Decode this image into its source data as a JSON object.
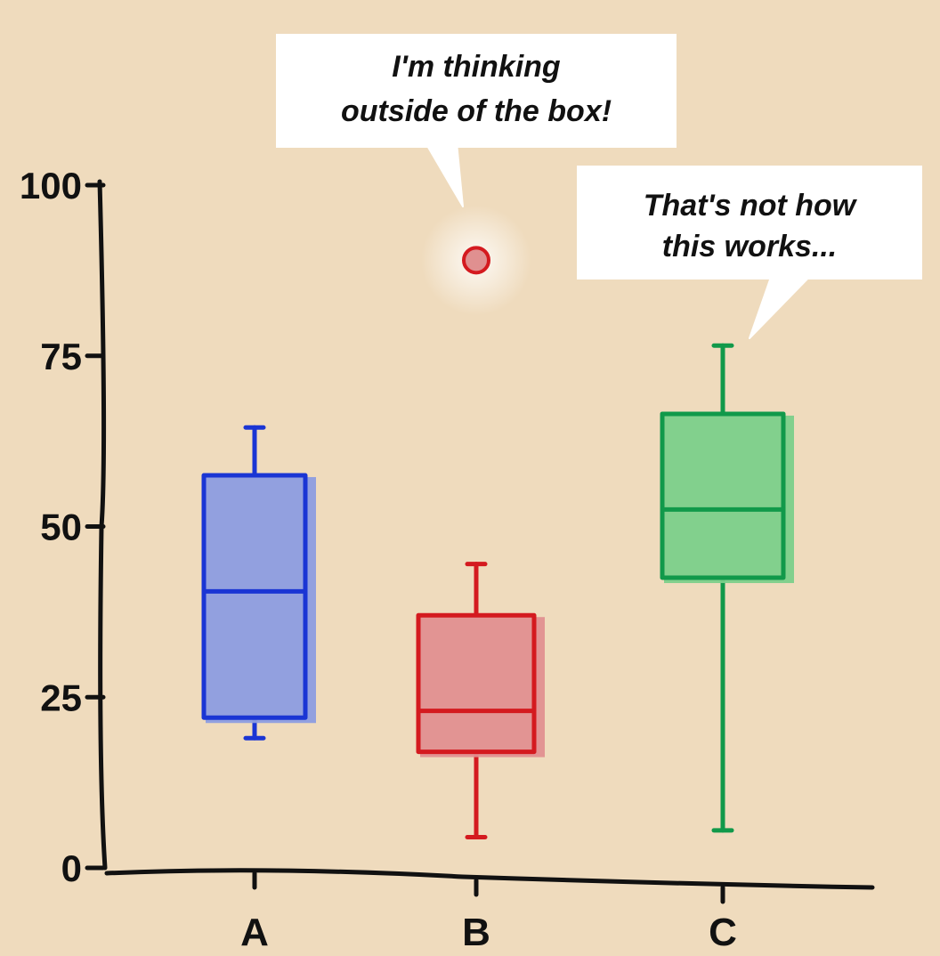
{
  "chart_data": {
    "type": "box",
    "title": "",
    "xlabel": "",
    "ylabel": "",
    "ylim": [
      0,
      100
    ],
    "yticks": [
      0,
      25,
      50,
      75,
      100
    ],
    "categories": [
      "A",
      "B",
      "C"
    ],
    "series": [
      {
        "category": "A",
        "min": 19,
        "q1": 22,
        "median": 40.5,
        "q3": 57.5,
        "max": 64.5,
        "color": "#1a35d4",
        "fill": "#8c9de0"
      },
      {
        "category": "B",
        "min": 4.5,
        "q1": 17,
        "median": 23,
        "q3": 37,
        "max": 44.5,
        "color": "#d41a1f",
        "fill": "#e09090",
        "outliers": [
          89
        ]
      },
      {
        "category": "C",
        "min": 5.5,
        "q1": 42.5,
        "median": 52.5,
        "q3": 66.5,
        "max": 76.5,
        "color": "#11994a",
        "fill": "#7bd08a"
      }
    ],
    "annotations": [
      {
        "id": "bubble-b",
        "lines": [
          "I'm thinking",
          "outside of the box!"
        ]
      },
      {
        "id": "bubble-c",
        "lines": [
          "That's not how",
          "this works..."
        ]
      }
    ]
  }
}
